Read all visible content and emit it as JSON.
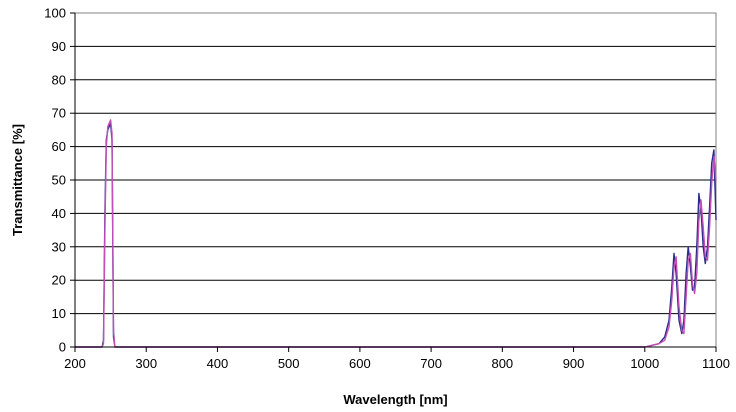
{
  "chart_data": {
    "type": "line",
    "title": "",
    "xlabel": "Wavelength [nm]",
    "ylabel": "Transmittance [%]",
    "xlim": [
      200,
      1100
    ],
    "ylim": [
      0,
      100
    ],
    "x_ticks": [
      200,
      300,
      400,
      500,
      600,
      700,
      800,
      900,
      1000,
      1100
    ],
    "y_ticks": [
      0,
      10,
      20,
      30,
      40,
      50,
      60,
      70,
      80,
      90,
      100
    ],
    "grid": "horizontal",
    "legend": "none",
    "colors": {
      "series_1": "#2b2b8c",
      "series_2": "#c24fb8",
      "grid": "#000000",
      "background": "#ffffff"
    },
    "series": [
      {
        "x": [
          200,
          238,
          240,
          242,
          244,
          246,
          248,
          250,
          252,
          254,
          256,
          260,
          1000,
          1020,
          1028,
          1034,
          1038,
          1041,
          1044,
          1048,
          1052,
          1055,
          1058,
          1061,
          1064,
          1067,
          1070,
          1073,
          1076,
          1079,
          1082,
          1085,
          1088,
          1091,
          1094,
          1097,
          1100
        ],
        "y": [
          0,
          0,
          2,
          40,
          62,
          65,
          66,
          67,
          62,
          3,
          0,
          0,
          0,
          1,
          3,
          8,
          18,
          28,
          22,
          8,
          4,
          8,
          22,
          30,
          24,
          17,
          18,
          30,
          46,
          41,
          30,
          25,
          30,
          42,
          55,
          59,
          38
        ]
      },
      {
        "x": [
          200,
          238,
          240,
          242,
          244,
          246,
          248,
          250,
          252,
          254,
          256,
          260,
          1000,
          1020,
          1028,
          1034,
          1038,
          1041,
          1044,
          1048,
          1052,
          1055,
          1058,
          1061,
          1064,
          1067,
          1070,
          1073,
          1076,
          1079,
          1082,
          1085,
          1088,
          1091,
          1094,
          1097,
          1100
        ],
        "y": [
          0,
          0,
          1,
          35,
          60,
          66,
          67,
          68,
          64,
          5,
          0,
          0,
          0,
          1,
          2,
          6,
          14,
          24,
          27,
          12,
          5,
          4,
          15,
          26,
          28,
          19,
          16,
          22,
          38,
          44,
          36,
          27,
          26,
          36,
          49,
          57,
          50
        ]
      }
    ]
  }
}
